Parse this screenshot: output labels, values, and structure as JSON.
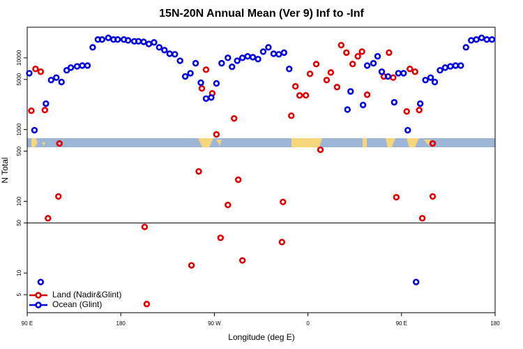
{
  "chart_data": {
    "type": "scatter",
    "title": "15N-20N Annual Mean (Ver 9)   Inf to -Inf",
    "x_label": "Longitude (deg E)",
    "y_label": "N Total",
    "log_y": true,
    "xlim": [
      90,
      540
    ],
    "ylim": [
      2.8,
      26700
    ],
    "xticks": [
      {
        "value": 90,
        "label": "90 E"
      },
      180,
      {
        "value": 270,
        "label": "90 W"
      },
      {
        "value": 360,
        "label": "0"
      },
      {
        "value": 450,
        "label": "90 E"
      },
      {
        "value": 540,
        "label": "180"
      }
    ],
    "yticks": [
      5,
      10,
      50,
      100,
      500,
      1000,
      5000,
      10000
    ],
    "legend": "bottom-left",
    "series": [
      {
        "name": "Land (Nadir&Glint)",
        "color": "#e00000",
        "x": [
          94,
          98,
          103,
          107,
          121,
          120,
          110,
          203,
          205,
          248,
          255,
          258,
          262,
          268,
          272,
          276,
          283,
          289,
          293,
          297,
          335,
          336,
          344,
          348,
          352,
          358,
          362,
          368,
          372,
          378,
          382,
          388,
          392,
          397,
          403,
          408,
          412,
          417,
          433,
          438,
          442,
          445,
          455,
          458,
          463,
          467,
          470,
          480,
          480
        ],
        "values": [
          1830,
          7000,
          6400,
          1870,
          640,
          117,
          58,
          44,
          3.7,
          12.8,
          261,
          3740,
          6840,
          3200,
          855,
          31,
          89,
          1430,
          200,
          15,
          27,
          98,
          1560,
          4000,
          2990,
          3000,
          5980,
          8180,
          523,
          4900,
          6250,
          3910,
          15000,
          11800,
          8200,
          10500,
          12200,
          3060,
          5500,
          11800,
          5300,
          114,
          1790,
          7000,
          6400,
          1870,
          58,
          640,
          117
        ]
      },
      {
        "name": "Ocean (Glint)",
        "color": "#0000e0",
        "x": [
          92,
          97,
          103,
          108,
          113,
          118,
          123,
          128,
          132,
          138,
          143,
          148,
          153,
          158,
          162,
          168,
          173,
          177,
          183,
          187,
          193,
          197,
          202,
          207,
          212,
          217,
          222,
          227,
          232,
          237,
          242,
          247,
          252,
          257,
          262,
          267,
          272,
          277,
          283,
          287,
          292,
          297,
          302,
          307,
          312,
          317,
          322,
          327,
          332,
          337,
          342,
          398,
          401,
          413,
          417,
          423,
          427,
          431,
          437,
          443,
          447,
          452,
          456,
          464,
          468,
          473,
          478,
          482,
          487,
          492,
          497,
          502,
          507,
          512,
          517,
          522,
          527,
          532,
          537
        ],
        "values": [
          6100,
          980,
          7.5,
          2300,
          4900,
          5300,
          4600,
          6700,
          7300,
          7600,
          7800,
          7800,
          14000,
          18000,
          18000,
          19000,
          18000,
          18000,
          18000,
          17500,
          17000,
          17000,
          16700,
          15600,
          16400,
          14000,
          12800,
          11400,
          11200,
          9100,
          5500,
          6100,
          8400,
          4500,
          2700,
          2800,
          4400,
          8400,
          10000,
          7500,
          9100,
          10000,
          10500,
          10200,
          9600,
          12200,
          14000,
          11400,
          11200,
          11800,
          7000,
          1900,
          3400,
          2200,
          7800,
          8400,
          10500,
          6400,
          5500,
          2400,
          6100,
          6100,
          980,
          7.5,
          2300,
          4900,
          5300,
          4600,
          6700,
          7300,
          7600,
          7800,
          7800,
          14000,
          17500,
          18000,
          19000,
          18000,
          18000
        ]
      }
    ]
  }
}
